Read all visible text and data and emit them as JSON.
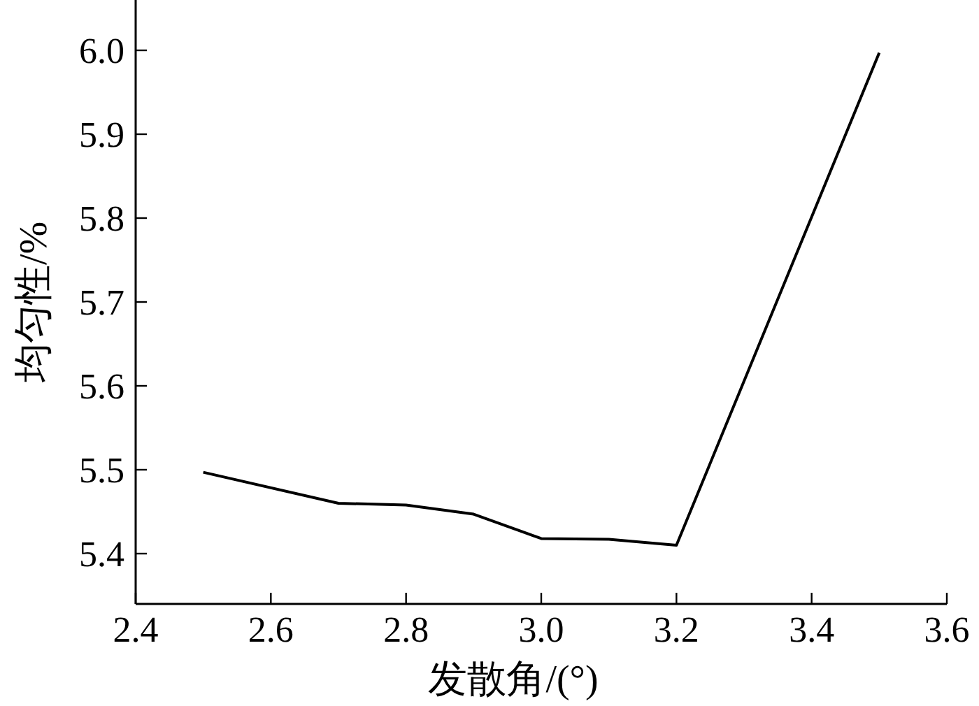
{
  "chart_data": {
    "type": "line",
    "xlabel": "发散角/(°)",
    "ylabel": "均匀性/%",
    "x": [
      2.5,
      2.7,
      2.8,
      2.9,
      3.0,
      3.1,
      3.2,
      3.5
    ],
    "series": [
      {
        "color": "#000000",
        "values": [
          5.497,
          5.46,
          5.458,
          5.447,
          5.418,
          5.417,
          5.41,
          5.997
        ]
      }
    ],
    "xlim": [
      2.4,
      3.6
    ],
    "ylim": [
      5.34,
      6.06
    ],
    "xticks": [
      {
        "value": 2.4,
        "label": "2.4"
      },
      {
        "value": 2.6,
        "label": "2.6"
      },
      {
        "value": 2.8,
        "label": "2.8"
      },
      {
        "value": 3.0,
        "label": "3.0"
      },
      {
        "value": 3.2,
        "label": "3.2"
      },
      {
        "value": 3.4,
        "label": "3.4"
      },
      {
        "value": 3.6,
        "label": "3.6"
      }
    ],
    "yticks": [
      {
        "value": 5.4,
        "label": "5.4"
      },
      {
        "value": 5.5,
        "label": "5.5"
      },
      {
        "value": 5.6,
        "label": "5.6"
      },
      {
        "value": 5.7,
        "label": "5.7"
      },
      {
        "value": 5.8,
        "label": "5.8"
      },
      {
        "value": 5.9,
        "label": "5.9"
      },
      {
        "value": 6.0,
        "label": "6.0"
      }
    ],
    "grid": false,
    "marker": "none",
    "line_style": "solid"
  }
}
